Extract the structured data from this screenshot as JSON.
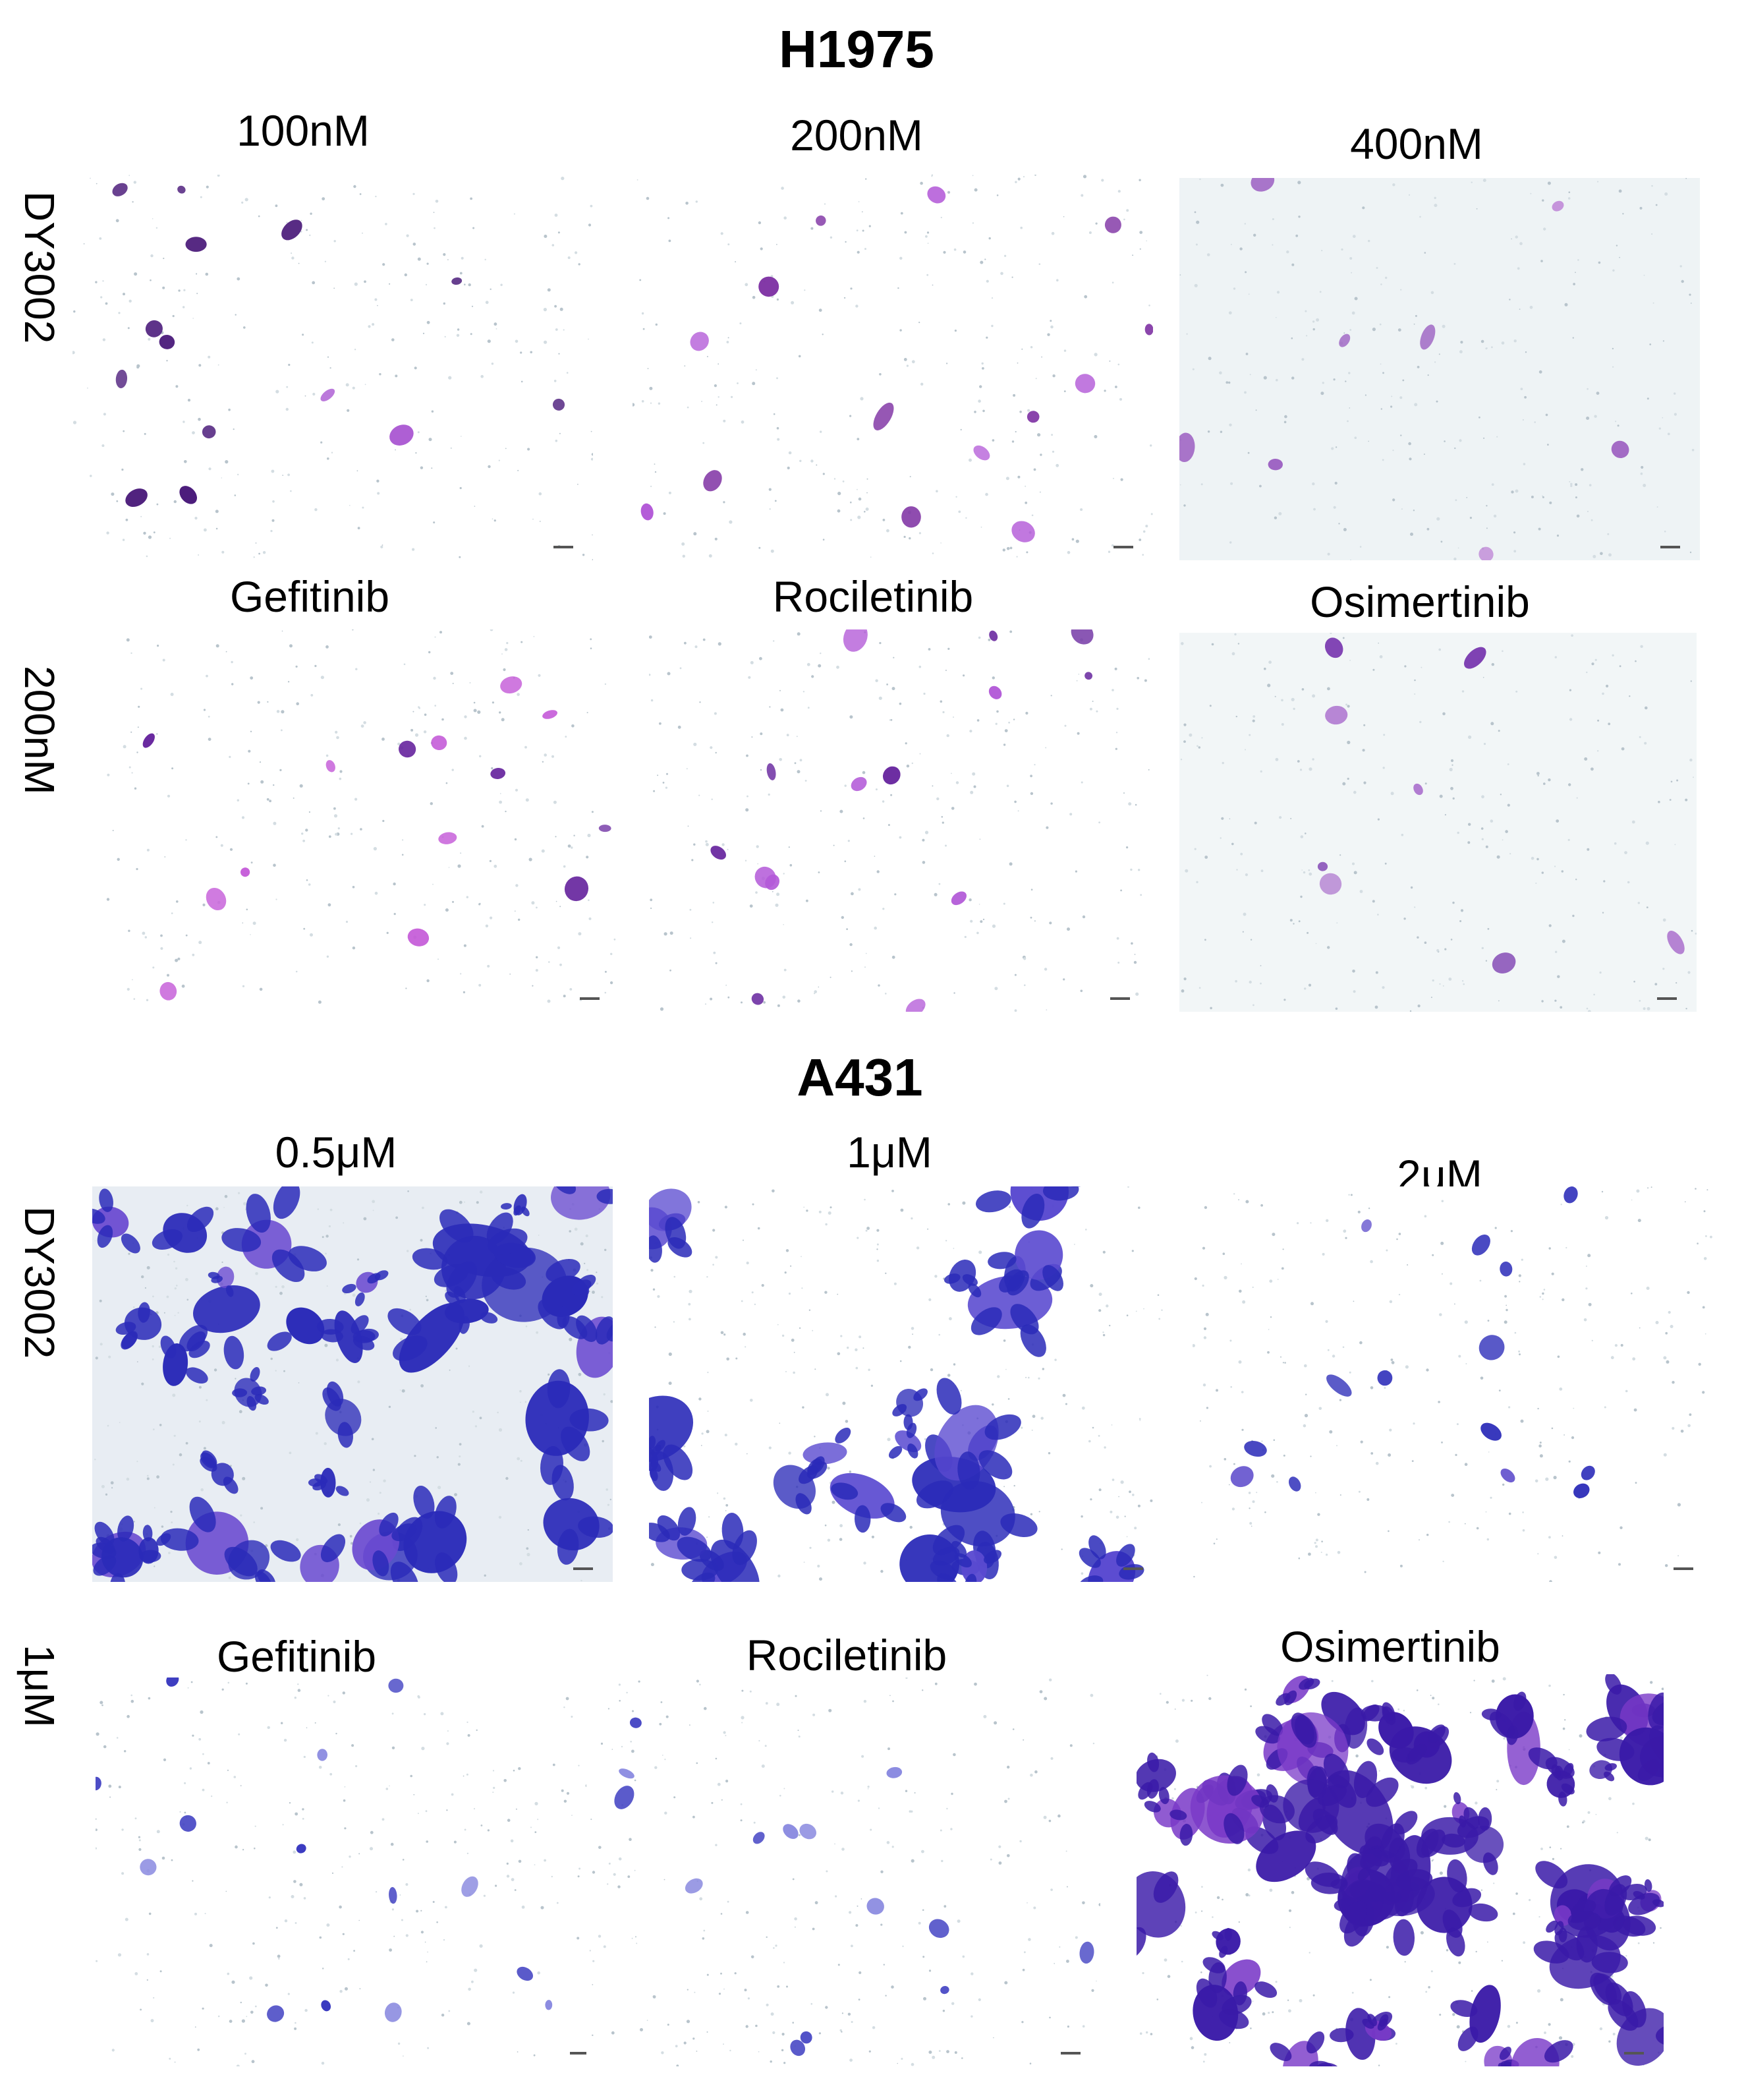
{
  "sections": [
    {
      "title": "H1975",
      "row_labels": [
        "DY3002",
        "200nM"
      ],
      "panels": [
        {
          "label": "100nM",
          "background": "#ffffff",
          "cell_color": "#4a1a7a",
          "accent_color": "#a64fd0",
          "density": "low"
        },
        {
          "label": "200nM",
          "background": "#ffffff",
          "cell_color": "#7a2aa0",
          "accent_color": "#b35ad8",
          "density": "low"
        },
        {
          "label": "400nM",
          "background": "#eef3f5",
          "cell_color": "#9a5cc0",
          "accent_color": "#c08ad8",
          "density": "very-low"
        },
        {
          "label": "Gefitinib",
          "background": "#ffffff",
          "cell_color": "#6a2aa0",
          "accent_color": "#c45ad8",
          "density": "low"
        },
        {
          "label": "Rociletinib",
          "background": "#ffffff",
          "cell_color": "#6a2aa0",
          "accent_color": "#b35ad8",
          "density": "low"
        },
        {
          "label": "Osimertinib",
          "background": "#f2f6f7",
          "cell_color": "#7a3ab0",
          "accent_color": "#b07ad0",
          "density": "very-low"
        }
      ]
    },
    {
      "title": "A431",
      "row_labels": [
        "DY3002",
        "1μM"
      ],
      "panels": [
        {
          "label": "0.5μM",
          "background": "#e8edf3",
          "cell_color": "#2a2ab8",
          "accent_color": "#6a4ad0",
          "density": "high"
        },
        {
          "label": "1μM",
          "background": "#ffffff",
          "cell_color": "#2a2ab8",
          "accent_color": "#5a4ad0",
          "density": "medium"
        },
        {
          "label": "2μM",
          "background": "#ffffff",
          "cell_color": "#2a2ab8",
          "accent_color": "#6a5ad0",
          "density": "low"
        },
        {
          "label": "Gefitinib",
          "background": "#ffffff",
          "cell_color": "#3a3ac0",
          "accent_color": "#8a8ae0",
          "density": "low"
        },
        {
          "label": "Rociletinib",
          "background": "#ffffff",
          "cell_color": "#3a3ac0",
          "accent_color": "#8a8ae0",
          "density": "low"
        },
        {
          "label": "Osimertinib",
          "background": "#ffffff",
          "cell_color": "#3a1aa8",
          "accent_color": "#7a3ac8",
          "density": "very-high"
        }
      ]
    }
  ]
}
